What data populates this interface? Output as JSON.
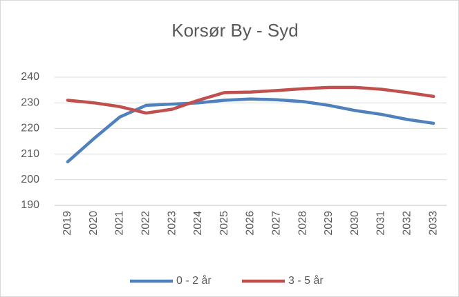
{
  "chart_data": {
    "type": "line",
    "title": "Korsør By - Syd",
    "categories": [
      "2019",
      "2020",
      "2021",
      "2022",
      "2023",
      "2024",
      "2025",
      "2026",
      "2027",
      "2028",
      "2029",
      "2030",
      "2031",
      "2032",
      "2033"
    ],
    "series": [
      {
        "name": "0 - 2 år",
        "color": "#4f81bd",
        "values": [
          207,
          216,
          224.5,
          229,
          229.5,
          230,
          231,
          231.5,
          231.2,
          230.5,
          229,
          227,
          225.5,
          223.5,
          222
        ]
      },
      {
        "name": "3 - 5 år",
        "color": "#c0504d",
        "values": [
          231,
          230,
          228.5,
          226,
          227.5,
          231,
          234,
          234.2,
          234.8,
          235.5,
          236,
          236,
          235.3,
          234,
          232.5
        ]
      }
    ],
    "ylim": [
      190,
      240
    ],
    "yticks": [
      190,
      200,
      210,
      220,
      230,
      240
    ],
    "grid": true,
    "legend": "bottom"
  }
}
